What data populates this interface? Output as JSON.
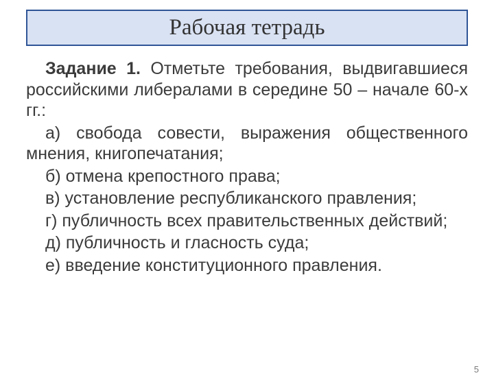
{
  "title": {
    "text": "Рабочая тетрадь",
    "border_color": "#2f5496",
    "background_color": "#d9e2f3",
    "text_color": "#333333",
    "font_family": "Times New Roman",
    "font_size_pt": 25
  },
  "task": {
    "label": "Задание 1.",
    "intro": " Отметьте требования, выдвигавшиеся российскими либералами в середине 50 – начале 60-х гг.:",
    "text_color": "#3b3b3b",
    "font_size_pt": 19
  },
  "items": [
    "а) свобода совести, выражения общественного мнения, книгопечатания;",
    "б) отмена крепостного права;",
    "в) установление республиканского правления;",
    "г) публичность всех правительственных действий;",
    "д) публичность и гласность суда;",
    "е) введение конституционного правления."
  ],
  "page_number": "5"
}
